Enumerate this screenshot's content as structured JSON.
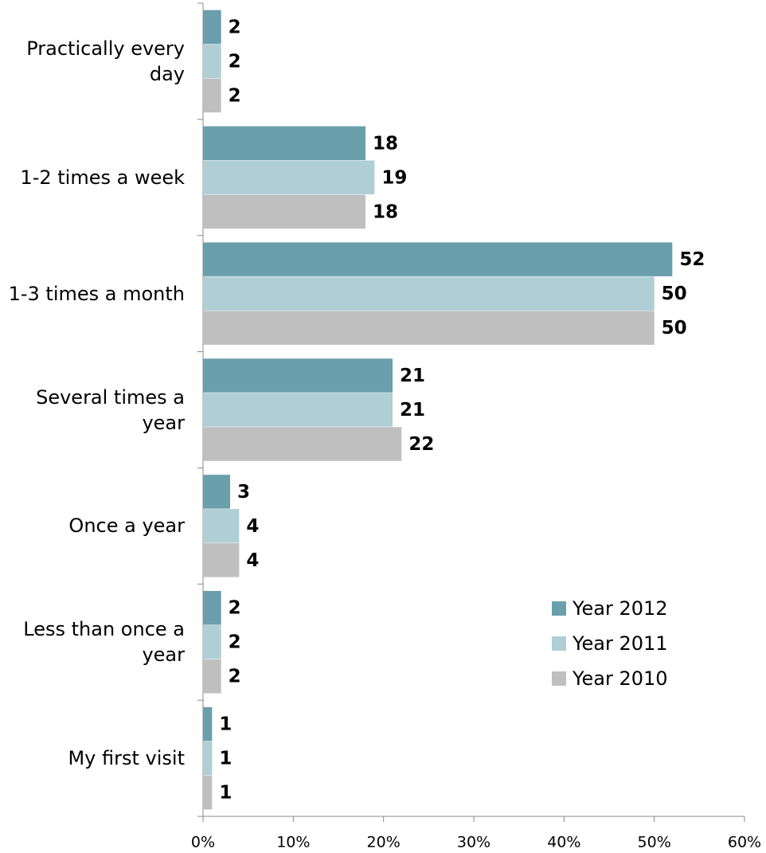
{
  "chart_data": {
    "type": "hbar",
    "categories": [
      "Practically every day",
      "1-2 times a week",
      "1-3 times a month",
      "Several times a year",
      "Once a year",
      "Less than once a year",
      "My first visit"
    ],
    "series": [
      {
        "name": "Year 2012",
        "color": "#6a9fac",
        "values": [
          2,
          18,
          52,
          21,
          3,
          2,
          1
        ]
      },
      {
        "name": "Year 2011",
        "color": "#afcfd5",
        "values": [
          2,
          19,
          50,
          21,
          4,
          2,
          1
        ]
      },
      {
        "name": "Year 2010",
        "color": "#bfbfbf",
        "values": [
          2,
          18,
          50,
          22,
          4,
          2,
          1
        ]
      }
    ],
    "xlim": [
      0,
      60
    ],
    "xticks": [
      {
        "value": 0,
        "label": "0%"
      },
      {
        "value": 10,
        "label": "10%"
      },
      {
        "value": 20,
        "label": "20%"
      },
      {
        "value": 30,
        "label": "30%"
      },
      {
        "value": 40,
        "label": "40%"
      },
      {
        "value": 50,
        "label": "50%"
      },
      {
        "value": 60,
        "label": "60%"
      }
    ],
    "legend": "lower-right"
  }
}
